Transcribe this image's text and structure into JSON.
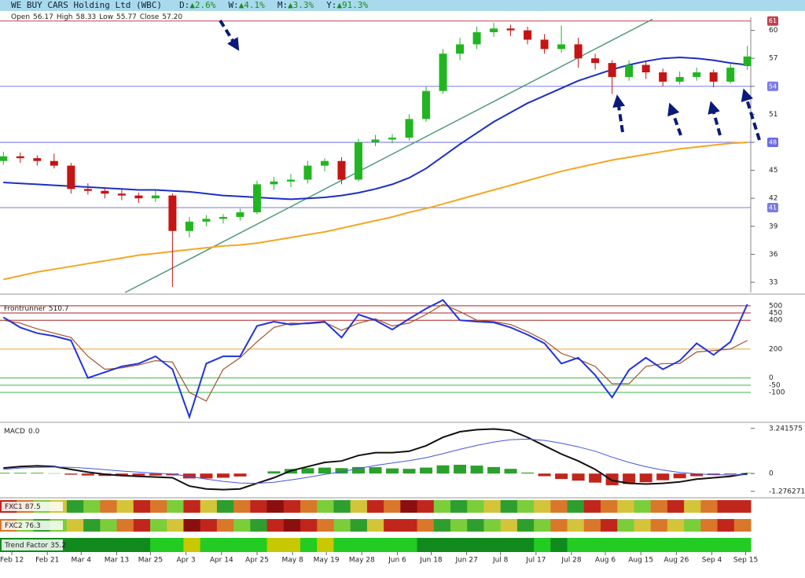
{
  "header": {
    "title": "WE BUY CARS Holding Ltd (WBC)",
    "changes": [
      {
        "label": "D:",
        "change": "▲2.6%"
      },
      {
        "label": "W:",
        "change": "▲4.1%"
      },
      {
        "label": "M:",
        "change": "▲3.3%"
      },
      {
        "label": "Y:",
        "change": "▲91.3%"
      }
    ],
    "ohlc": [
      {
        "label": "Open",
        "value": "56.17"
      },
      {
        "label": "High",
        "value": "58.33"
      },
      {
        "label": "Low",
        "value": "55.77"
      },
      {
        "label": "Close",
        "value": "57.20"
      }
    ]
  },
  "chart_data": [
    {
      "type": "candlestick",
      "up_color": "#22b522",
      "down_color": "#c41414",
      "open": [
        46.0,
        46.5,
        46.3,
        46.0,
        45.5,
        43.0,
        42.8,
        42.5,
        42.3,
        42.0,
        42.3,
        38.5,
        39.5,
        39.8,
        40.0,
        40.5,
        43.5,
        43.8,
        44.0,
        45.5,
        46.0,
        44.0,
        48.0,
        48.3,
        48.5,
        50.5,
        53.5,
        57.5,
        58.5,
        59.8,
        60.2,
        60.0,
        59.0,
        58.0,
        58.5,
        57.0,
        56.5,
        55.0,
        56.3,
        55.5,
        54.5,
        55.0,
        55.5,
        54.5,
        56.17
      ],
      "high": [
        47.0,
        46.9,
        46.6,
        46.8,
        45.8,
        43.6,
        43.2,
        43.0,
        42.6,
        42.8,
        42.5,
        40.0,
        40.2,
        40.3,
        40.9,
        43.9,
        44.3,
        44.6,
        46.0,
        46.3,
        46.4,
        48.4,
        48.8,
        48.9,
        51.0,
        54.0,
        58.0,
        59.2,
        60.4,
        60.8,
        60.6,
        60.4,
        59.6,
        60.5,
        59.2,
        57.5,
        56.8,
        56.8,
        56.7,
        55.9,
        55.6,
        56.0,
        55.8,
        56.4,
        58.33
      ],
      "low": [
        45.6,
        45.8,
        45.5,
        45.2,
        42.5,
        42.4,
        42.0,
        41.8,
        41.5,
        41.6,
        32.5,
        37.8,
        39.0,
        39.3,
        39.6,
        40.3,
        42.9,
        43.2,
        43.6,
        44.9,
        43.5,
        43.8,
        47.6,
        47.9,
        48.2,
        50.2,
        53.2,
        56.8,
        58.0,
        59.3,
        59.4,
        58.5,
        57.5,
        57.6,
        56.0,
        55.8,
        53.2,
        54.6,
        54.8,
        54.0,
        54.2,
        54.6,
        53.9,
        54.3,
        55.77
      ],
      "close": [
        46.5,
        46.3,
        46.0,
        45.5,
        43.0,
        42.8,
        42.5,
        42.3,
        42.0,
        42.3,
        38.5,
        39.5,
        39.8,
        40.0,
        40.5,
        43.5,
        43.8,
        44.0,
        45.5,
        46.0,
        44.0,
        48.0,
        48.3,
        48.5,
        50.5,
        53.5,
        57.5,
        58.5,
        59.8,
        60.2,
        60.0,
        59.0,
        58.0,
        58.5,
        57.0,
        56.5,
        55.0,
        56.3,
        55.5,
        54.5,
        55.0,
        55.5,
        54.5,
        56.0,
        57.2
      ],
      "overlays": [
        {
          "color": "#1c2fc4",
          "values": [
            43.7,
            43.6,
            43.5,
            43.4,
            43.3,
            43.2,
            43.1,
            43.0,
            42.9,
            42.9,
            42.8,
            42.7,
            42.5,
            42.3,
            42.2,
            42.1,
            42.0,
            41.9,
            42.0,
            42.1,
            42.3,
            42.6,
            43.0,
            43.5,
            44.2,
            45.2,
            46.5,
            47.8,
            49.0,
            50.2,
            51.2,
            52.2,
            53.0,
            53.8,
            54.6,
            55.2,
            55.8,
            56.3,
            56.7,
            57.0,
            57.1,
            57.0,
            56.8,
            56.5,
            56.3
          ]
        },
        {
          "color": "#f5a623",
          "values": [
            33.3,
            33.7,
            34.1,
            34.4,
            34.7,
            35.0,
            35.3,
            35.6,
            35.9,
            36.1,
            36.3,
            36.5,
            36.7,
            36.9,
            37.0,
            37.2,
            37.5,
            37.8,
            38.1,
            38.4,
            38.8,
            39.2,
            39.6,
            40.0,
            40.5,
            40.9,
            41.4,
            41.9,
            42.4,
            42.9,
            43.4,
            43.9,
            44.4,
            44.9,
            45.3,
            45.7,
            46.1,
            46.4,
            46.7,
            47.0,
            47.3,
            47.5,
            47.7,
            47.9,
            48.0
          ]
        }
      ],
      "levels": [
        {
          "value": 61,
          "color": "#c0404f"
        },
        {
          "value": 54,
          "color": "#7a7ae6"
        },
        {
          "value": 48,
          "color": "#6a6ae0"
        },
        {
          "value": 41,
          "color": "#7a7ae6"
        }
      ],
      "trendline": {
        "color": "#4f9a78",
        "x": [
          7.2,
          38.4
        ],
        "y": [
          31.9,
          61.2
        ]
      },
      "xlim": [
        -0.2,
        44.2
      ],
      "ylim": [
        31.9,
        61.4
      ],
      "yticks": [
        33,
        36,
        39,
        42,
        45,
        48,
        51,
        54,
        57,
        60
      ],
      "xticks": [
        {
          "value": 0.5,
          "label": "Feb 12"
        },
        {
          "value": 2.6,
          "label": "Feb 21"
        },
        {
          "value": 4.6,
          "label": "Mar 4"
        },
        {
          "value": 6.7,
          "label": "Mar 13"
        },
        {
          "value": 8.7,
          "label": "Mar 25"
        },
        {
          "value": 10.8,
          "label": "Apr 3"
        },
        {
          "value": 12.9,
          "label": "Apr 14"
        },
        {
          "value": 15,
          "label": "Apr 25"
        },
        {
          "value": 17.1,
          "label": "May 8"
        },
        {
          "value": 19.1,
          "label": "May 19"
        },
        {
          "value": 21.2,
          "label": "May 28"
        },
        {
          "value": 23.3,
          "label": "Jun 6"
        },
        {
          "value": 25.3,
          "label": "Jun 18"
        },
        {
          "value": 27.4,
          "label": "Jun 27"
        },
        {
          "value": 29.4,
          "label": "Jul 8"
        },
        {
          "value": 31.5,
          "label": "Jul 17"
        },
        {
          "value": 33.6,
          "label": "Jul 28"
        },
        {
          "value": 35.6,
          "label": "Aug 6"
        },
        {
          "value": 37.7,
          "label": "Aug 15"
        },
        {
          "value": 39.8,
          "label": "Aug 26"
        },
        {
          "value": 41.9,
          "label": "Sep 4"
        },
        {
          "value": 43.9,
          "label": "Sep 15"
        }
      ]
    },
    {
      "type": "line",
      "title": "Frontrunner",
      "value": 510.7,
      "series": [
        {
          "color": "#2233dd",
          "values": [
            420,
            350,
            310,
            290,
            260,
            0,
            40,
            80,
            100,
            150,
            60,
            -270,
            100,
            150,
            150,
            360,
            390,
            370,
            380,
            390,
            280,
            440,
            400,
            335,
            410,
            480,
            540,
            400,
            390,
            385,
            350,
            300,
            240,
            100,
            140,
            20,
            -135,
            55,
            140,
            60,
            120,
            240,
            160,
            250,
            510.7
          ]
        },
        {
          "color": "#a0522d",
          "values": [
            400,
            380,
            340,
            310,
            280,
            150,
            60,
            70,
            90,
            120,
            110,
            -100,
            -160,
            60,
            140,
            250,
            350,
            380,
            375,
            385,
            330,
            380,
            410,
            360,
            380,
            440,
            510,
            460,
            400,
            390,
            370,
            320,
            260,
            170,
            130,
            80,
            -40,
            -40,
            80,
            100,
            100,
            180,
            190,
            200,
            260
          ]
        }
      ],
      "ylim": [
        -296,
        559
      ],
      "yticks": [
        -100,
        -50,
        0,
        200,
        400,
        450,
        500
      ],
      "grid_colors": [
        "#3cb44b",
        "#3cb44b",
        "#3cb44b",
        "#e8a23a",
        "#b22222",
        "#b22222",
        "#b22222"
      ]
    },
    {
      "type": "macd",
      "title": "MACD",
      "value": 0,
      "value_label": "0.0",
      "series": [
        {
          "color": "#111111",
          "values": [
            0.4,
            0.5,
            0.55,
            0.5,
            0.3,
            0.1,
            -0.05,
            -0.15,
            -0.2,
            -0.25,
            -0.3,
            -0.9,
            -1.1,
            -1.15,
            -1.1,
            -0.7,
            -0.3,
            0.2,
            0.5,
            0.8,
            0.9,
            1.3,
            1.5,
            1.5,
            1.6,
            2.0,
            2.6,
            3.0,
            3.15,
            3.2,
            3.1,
            2.6,
            2.0,
            1.4,
            0.9,
            0.3,
            -0.5,
            -0.7,
            -0.75,
            -0.7,
            -0.6,
            -0.4,
            -0.3,
            -0.2,
            0.0
          ]
        },
        {
          "color": "#4455dd",
          "values": [
            0.3,
            0.4,
            0.45,
            0.47,
            0.45,
            0.38,
            0.28,
            0.18,
            0.1,
            0.03,
            -0.04,
            -0.2,
            -0.4,
            -0.56,
            -0.68,
            -0.7,
            -0.62,
            -0.46,
            -0.27,
            -0.06,
            0.13,
            0.36,
            0.58,
            0.76,
            0.93,
            1.14,
            1.43,
            1.74,
            2.02,
            2.26,
            2.43,
            2.47,
            2.38,
            2.18,
            1.92,
            1.6,
            1.18,
            0.8,
            0.49,
            0.25,
            0.08,
            -0.02,
            -0.08,
            -0.1,
            -0.08
          ]
        }
      ],
      "histogram": {
        "up_color": "#2ca02c",
        "down_color": "#c0261c",
        "values": [
          0.05,
          0.05,
          0.05,
          0.02,
          -0.08,
          -0.14,
          -0.17,
          -0.17,
          -0.15,
          -0.14,
          -0.13,
          -0.35,
          -0.35,
          -0.3,
          -0.21,
          0.0,
          0.16,
          0.33,
          0.39,
          0.43,
          0.39,
          0.47,
          0.46,
          0.37,
          0.34,
          0.43,
          0.59,
          0.63,
          0.57,
          0.47,
          0.34,
          0.07,
          -0.19,
          -0.39,
          -0.51,
          -0.65,
          -0.84,
          -0.75,
          -0.62,
          -0.48,
          -0.34,
          -0.19,
          -0.11,
          -0.05,
          0.04
        ]
      },
      "ylim": [
        -1.57,
        3.51
      ],
      "yticks": [
        -1.276271,
        0,
        3.241575
      ]
    },
    {
      "type": "heatstrip",
      "name": "FXC1",
      "value": 87.5,
      "colors": [
        "#c0261c",
        "#d9772a",
        "#7ccd3a",
        "#d4c43a",
        "#2e9e2e",
        "#7ccd3a",
        "#d9772a",
        "#d4c43a",
        "#c0261c",
        "#d9772a",
        "#7ccd3a",
        "#c0261c",
        "#d4c43a",
        "#2e9e2e",
        "#d9772a",
        "#c0261c",
        "#8b0f0f",
        "#c0261c",
        "#d9772a",
        "#7ccd3a",
        "#2e9e2e",
        "#d4c43a",
        "#c0261c",
        "#d9772a",
        "#8b0f0f",
        "#c0261c",
        "#7ccd3a",
        "#2e9e2e",
        "#7ccd3a",
        "#d4c43a",
        "#2e9e2e",
        "#7ccd3a",
        "#d4c43a",
        "#d9772a",
        "#2e9e2e",
        "#c0261c",
        "#d9772a",
        "#d4c43a",
        "#7ccd3a",
        "#d9772a",
        "#c0261c",
        "#d4c43a",
        "#d9772a",
        "#c0261c",
        "#c0261c"
      ]
    },
    {
      "type": "heatstrip",
      "name": "FXC2",
      "value": 76.3,
      "colors": [
        "#d9772a",
        "#7ccd3a",
        "#2e9e2e",
        "#7ccd3a",
        "#d4c43a",
        "#2e9e2e",
        "#7ccd3a",
        "#d9772a",
        "#c0261c",
        "#7ccd3a",
        "#d4c43a",
        "#8b0f0f",
        "#c0261c",
        "#d9772a",
        "#7ccd3a",
        "#2e9e2e",
        "#c0261c",
        "#8b0f0f",
        "#c0261c",
        "#d9772a",
        "#7ccd3a",
        "#2e9e2e",
        "#d4c43a",
        "#c0261c",
        "#c0261c",
        "#d9772a",
        "#2e9e2e",
        "#7ccd3a",
        "#2e9e2e",
        "#7ccd3a",
        "#d4c43a",
        "#2e9e2e",
        "#7ccd3a",
        "#d9772a",
        "#d4c43a",
        "#d9772a",
        "#c0261c",
        "#7ccd3a",
        "#d4c43a",
        "#d9772a",
        "#d4c43a",
        "#7ccd3a",
        "#d9772a",
        "#c0261c",
        "#d9772a"
      ]
    },
    {
      "type": "heatstrip",
      "name": "Trend Factor",
      "value": 35.2,
      "colors": [
        "#108a1c",
        "#108a1c",
        "#108a1c",
        "#108a1c",
        "#108a1c",
        "#108a1c",
        "#108a1c",
        "#108a1c",
        "#108a1c",
        "#22cc22",
        "#22cc22",
        "#c8c800",
        "#22cc22",
        "#22cc22",
        "#22cc22",
        "#22cc22",
        "#c8c800",
        "#c8c800",
        "#22cc22",
        "#c8c800",
        "#22cc22",
        "#22cc22",
        "#22cc22",
        "#22cc22",
        "#22cc22",
        "#108a1c",
        "#108a1c",
        "#108a1c",
        "#108a1c",
        "#108a1c",
        "#108a1c",
        "#108a1c",
        "#22cc22",
        "#108a1c",
        "#22cc22",
        "#22cc22",
        "#22cc22",
        "#22cc22",
        "#22cc22",
        "#22cc22",
        "#22cc22",
        "#22cc22",
        "#22cc22",
        "#22cc22",
        "#22cc22"
      ]
    }
  ]
}
